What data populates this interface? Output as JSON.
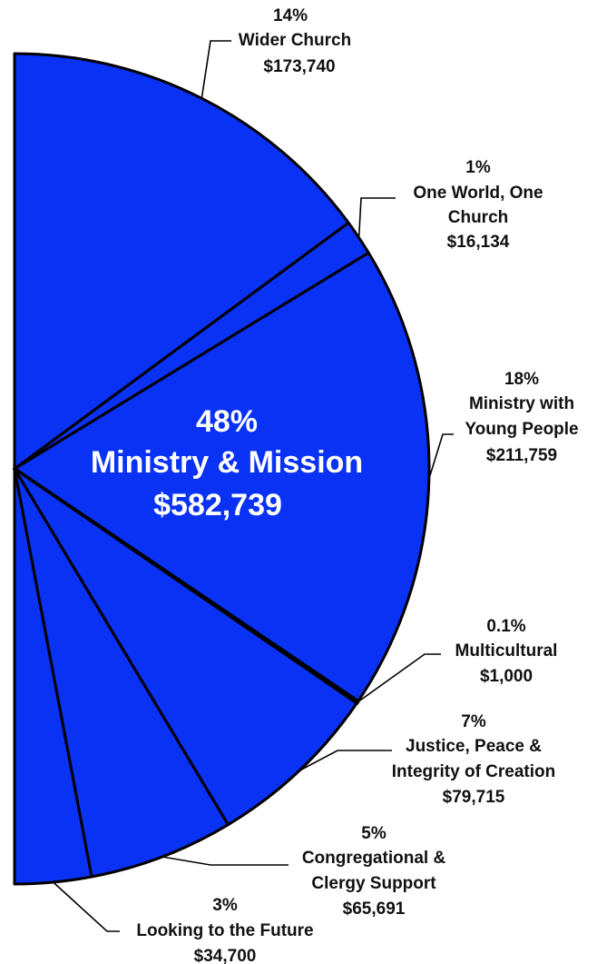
{
  "chart_data": {
    "type": "pie",
    "slices": [
      {
        "label": "Wider Church",
        "percent": "14%",
        "amount": "$173,740",
        "value": 173740
      },
      {
        "label": "One World, One Church",
        "percent": "1%",
        "amount": "$16,134",
        "value": 16134
      },
      {
        "label": "Ministry with Young People",
        "percent": "18%",
        "amount": "$211,759",
        "value": 211759
      },
      {
        "label": "Multicultural",
        "percent": "0.1%",
        "amount": "$1,000",
        "value": 1000
      },
      {
        "label": "Justice, Peace & Integrity of Creation",
        "percent": "7%",
        "amount": "$79,715",
        "value": 79715
      },
      {
        "label": "Congregational & Clergy Support",
        "percent": "5%",
        "amount": "$65,691",
        "value": 65691
      },
      {
        "label": "Looking to the Future",
        "percent": "3%",
        "amount": "$34,700",
        "value": 34700
      }
    ],
    "total": {
      "label": "Ministry & Mission",
      "percent": "48%",
      "amount": "$582,739",
      "value": 582739
    },
    "colors": {
      "fill": "#0a32f5",
      "stroke": "#000000",
      "center_text": "#ffffff"
    },
    "labels": {
      "wider": {
        "pct": "14%",
        "name": "Wider Church",
        "amt": "$173,740"
      },
      "oneworld": {
        "pct": "1%",
        "name1": "One World, One",
        "name2": "Church",
        "amt": "$16,134"
      },
      "young": {
        "pct": "18%",
        "name1": "Ministry with",
        "name2": "Young People",
        "amt": "$211,759"
      },
      "multi": {
        "pct": "0.1%",
        "name": "Multicultural",
        "amt": "$1,000"
      },
      "justice": {
        "pct": "7%",
        "name1": "Justice, Peace &",
        "name2": "Integrity of Creation",
        "amt": "$79,715"
      },
      "cong": {
        "pct": "5%",
        "name1": "Congregational &",
        "name2": "Clergy Support",
        "amt": "$65,691"
      },
      "future": {
        "pct": "3%",
        "name": "Looking to the Future",
        "amt": "$34,700"
      },
      "center": {
        "pct": "48%",
        "name": "Ministry & Mission",
        "amt": "$582,739"
      }
    }
  }
}
